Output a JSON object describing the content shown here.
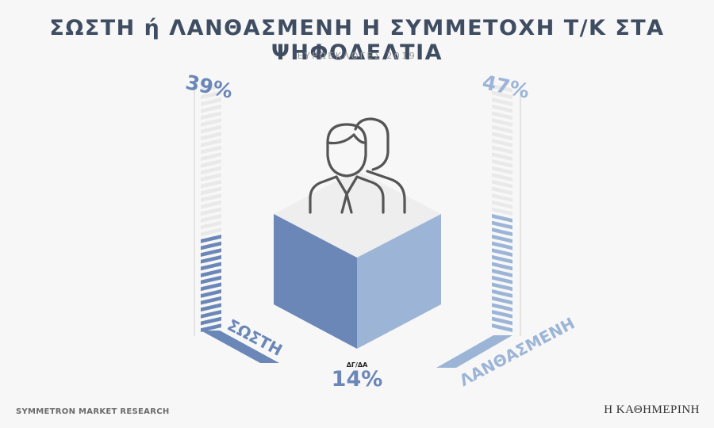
{
  "header": {
    "title": "ΣΩΣΤΗ ή ΛΑΝΘΑΣΜΕΝΗ Η ΣΥΜΜΕΤΟΧΗ Τ/Κ ΣΤΑ ΨΗΦΟΔΕΛΤΙΑ",
    "subtitle": "ΕΥΡΩΕΚΛΟΓΕΣ 2019"
  },
  "footer": {
    "source": "SYMMETRON MARKET RESEARCH",
    "brand": "Η ΚΑΘΗΜΕΡΙΝΗ"
  },
  "colors": {
    "dark_blue": "#6b87b8",
    "light_blue": "#9cb5d7",
    "title": "#3f4d62",
    "empty_stripe": "#e9e9e9"
  },
  "chart_data": {
    "type": "bar",
    "title": "ΣΩΣΤΗ ή ΛΑΝΘΑΣΜΕΝΗ Η ΣΥΜΜΕΤΟΧΗ Τ/Κ ΣΤΑ ΨΗΦΟΔΕΛΤΙΑ",
    "subtitle": "ΕΥΡΩΕΚΛΟΓΕΣ 2019",
    "unit": "%",
    "categories": [
      "ΣΩΣΤΗ",
      "ΛΑΝΘΑΣΜΕΝΗ",
      "ΔΓ/ΔΑ"
    ],
    "values": [
      39,
      47,
      14
    ],
    "value_labels": [
      "39%",
      "47%",
      "14%"
    ],
    "colors": [
      "#6b87b8",
      "#9cb5d7",
      "#6b87b8"
    ],
    "ylim": [
      0,
      100
    ]
  }
}
